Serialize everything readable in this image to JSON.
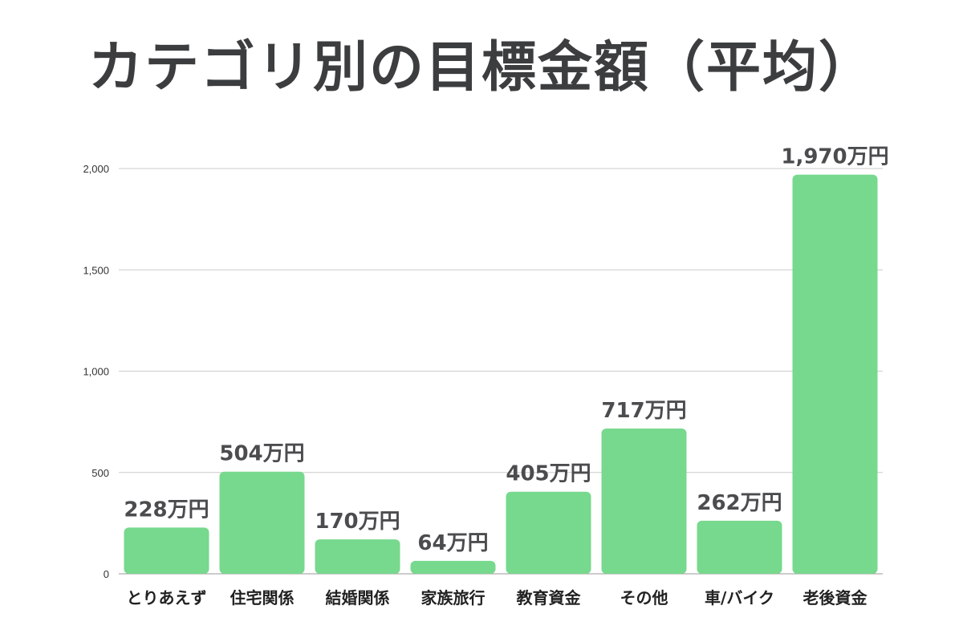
{
  "title": "カテゴリ別の目標金額（平均）",
  "colors": {
    "bar": "#77d98e",
    "grid": "#cccccc",
    "title": "#3b3d3f"
  },
  "chart_data": {
    "type": "bar",
    "title": "カテゴリ別の目標金額（平均）",
    "categories": [
      "とりあえず",
      "住宅関係",
      "結婚関係",
      "家族旅行",
      "教育資金",
      "その他",
      "車/バイク",
      "老後資金"
    ],
    "values": [
      228,
      504,
      170,
      64,
      405,
      717,
      262,
      1970
    ],
    "value_labels": [
      "228万円",
      "504万円",
      "170万円",
      "64万円",
      "405万円",
      "717万円",
      "262万円",
      "1,970万円"
    ],
    "yticks": [
      0,
      500,
      1000,
      1500,
      2000
    ],
    "ytick_labels": [
      "0",
      "500",
      "1,000",
      "1,500",
      "2,000"
    ],
    "ylim": [
      0,
      2000
    ],
    "xlabel": "",
    "ylabel": "",
    "grid": true,
    "legend": "none"
  }
}
